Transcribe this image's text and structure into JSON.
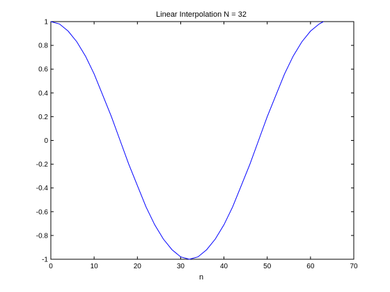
{
  "chart_data": {
    "type": "line",
    "title": "Linear Interpolation N = 32",
    "xlabel": "n",
    "ylabel": "",
    "xlim": [
      0,
      70
    ],
    "ylim": [
      -1,
      1
    ],
    "xticks": [
      0,
      10,
      20,
      30,
      40,
      50,
      60,
      70
    ],
    "yticks": [
      1,
      0.8,
      0.6,
      0.4,
      0.2,
      0,
      -0.2,
      -0.4,
      -0.6,
      -0.8,
      -1
    ],
    "xtick_labels": [
      "0",
      "10",
      "20",
      "30",
      "40",
      "50",
      "60",
      "70"
    ],
    "ytick_labels": [
      "1",
      "0.8",
      "0.6",
      "0.4",
      "0.2",
      "0",
      "-0.2",
      "-0.4",
      "-0.6",
      "-0.8",
      "-1"
    ],
    "grid": false,
    "series": [
      {
        "color": "#0000ff",
        "x": [
          0,
          2,
          4,
          6,
          8,
          10,
          12,
          14,
          16,
          18,
          20,
          22,
          24,
          26,
          28,
          30,
          32,
          34,
          36,
          38,
          40,
          42,
          44,
          46,
          48,
          50,
          52,
          54,
          56,
          58,
          60,
          62,
          63
        ],
        "y": [
          1.0,
          0.98,
          0.92,
          0.83,
          0.71,
          0.56,
          0.38,
          0.2,
          0.0,
          -0.2,
          -0.38,
          -0.56,
          -0.71,
          -0.83,
          -0.92,
          -0.98,
          -1.0,
          -0.98,
          -0.92,
          -0.83,
          -0.71,
          -0.56,
          -0.38,
          -0.2,
          0.0,
          0.2,
          0.38,
          0.56,
          0.71,
          0.83,
          0.92,
          0.98,
          1.0
        ]
      }
    ]
  }
}
